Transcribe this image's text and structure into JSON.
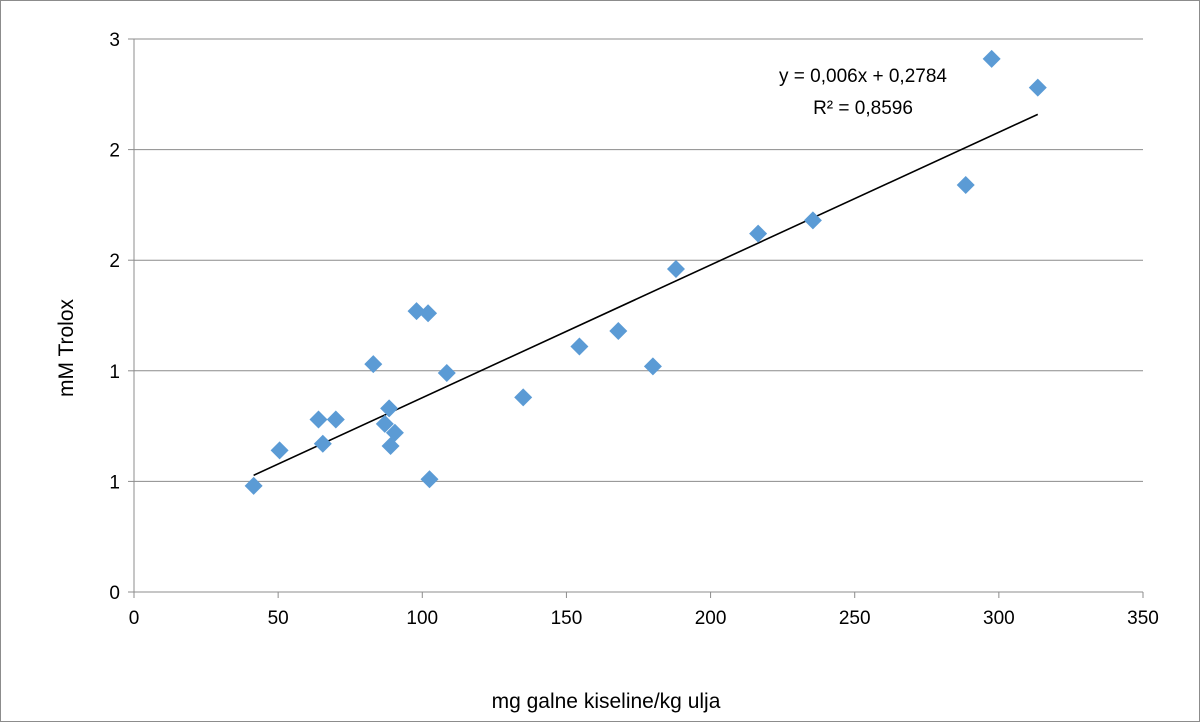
{
  "chart_data": {
    "type": "scatter",
    "title": "",
    "xlabel": "mg galne kiseline/kg ulja",
    "ylabel": "mM Trolox",
    "xlim": [
      0,
      350
    ],
    "ylim": [
      0,
      2.5
    ],
    "x_ticks": [
      0,
      50,
      100,
      150,
      200,
      250,
      300,
      350
    ],
    "y_tick_values": [
      0,
      0.5,
      1.0,
      1.5,
      2.0,
      2.5
    ],
    "y_tick_labels": [
      "0",
      "1",
      "1",
      "2",
      "2",
      "3"
    ],
    "grid": "horizontal",
    "legend": "none",
    "marker_color": "#5b9bd5",
    "trendline_color": "#000000",
    "series": [
      {
        "points": [
          [
            41.5,
            0.48
          ],
          [
            50.5,
            0.64
          ],
          [
            64,
            0.78
          ],
          [
            65.5,
            0.67
          ],
          [
            70,
            0.78
          ],
          [
            83,
            1.03
          ],
          [
            87,
            0.76
          ],
          [
            88.5,
            0.83
          ],
          [
            89,
            0.66
          ],
          [
            90.5,
            0.72
          ],
          [
            98,
            1.27
          ],
          [
            102,
            1.26
          ],
          [
            102.5,
            0.51
          ],
          [
            108.5,
            0.99
          ],
          [
            135,
            0.88
          ],
          [
            154.5,
            1.11
          ],
          [
            168,
            1.18
          ],
          [
            180,
            1.02
          ],
          [
            188,
            1.46
          ],
          [
            216.5,
            1.62
          ],
          [
            235.5,
            1.68
          ],
          [
            288.5,
            1.84
          ],
          [
            297.5,
            2.41
          ],
          [
            313.5,
            2.28
          ]
        ]
      }
    ],
    "trendline": {
      "slope": 0.006,
      "intercept": 0.2784,
      "x_range": [
        41.5,
        313.5
      ],
      "equation_label": "y = 0,006x + 0,2784",
      "r2_label": "R² = 0,8596"
    }
  }
}
